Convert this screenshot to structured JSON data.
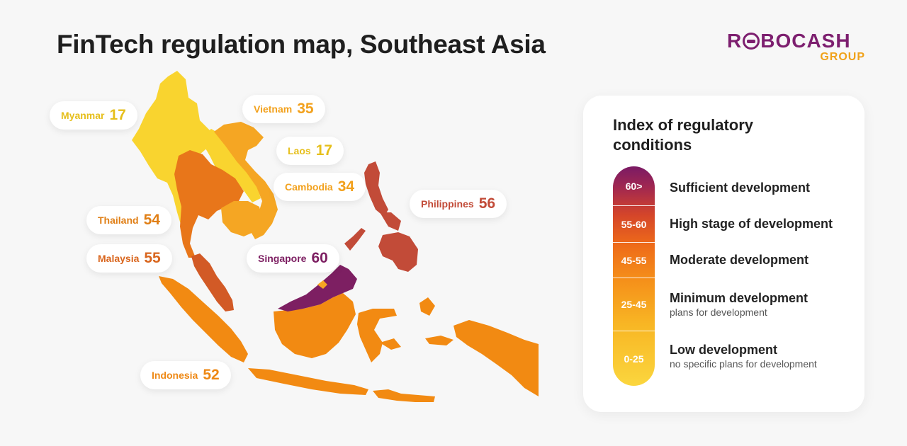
{
  "title": "FinTech regulation map, Southeast Asia",
  "logo": {
    "main_left": "R",
    "main_right": "BOCASH",
    "sub": "GROUP"
  },
  "colors": {
    "sufficient": "#7d1f62",
    "high": "#c24b38",
    "high_alt": "#d25a26",
    "moderate": "#f28a12",
    "minimum": "#f5a623",
    "low": "#f9d42f",
    "brand_purple": "#7d1f6f",
    "brand_orange": "#f0a21a"
  },
  "countries": [
    {
      "name": "Myanmar",
      "value": "17",
      "color": "#e6bf1c"
    },
    {
      "name": "Vietnam",
      "value": "35",
      "color": "#f2a11d"
    },
    {
      "name": "Laos",
      "value": "17",
      "color": "#e6bf1c"
    },
    {
      "name": "Cambodia",
      "value": "34",
      "color": "#f2a11d"
    },
    {
      "name": "Philippines",
      "value": "56",
      "color": "#c24b38"
    },
    {
      "name": "Thailand",
      "value": "54",
      "color": "#e07f16"
    },
    {
      "name": "Malaysia",
      "value": "55",
      "color": "#d9661e"
    },
    {
      "name": "Singapore",
      "value": "60",
      "color": "#7d1f62"
    },
    {
      "name": "Indonesia",
      "value": "52",
      "color": "#ee8814"
    }
  ],
  "legend": {
    "title": "Index of regulatory conditions",
    "levels": [
      {
        "range": "60>",
        "title": "Sufficient development",
        "sub": ""
      },
      {
        "range": "55-60",
        "title": "High stage of development",
        "sub": ""
      },
      {
        "range": "45-55",
        "title": "Moderate development",
        "sub": ""
      },
      {
        "range": "25-45",
        "title": "Minimum development",
        "sub": "plans for development"
      },
      {
        "range": "0-25",
        "title": "Low development",
        "sub": "no specific plans for development"
      }
    ]
  }
}
